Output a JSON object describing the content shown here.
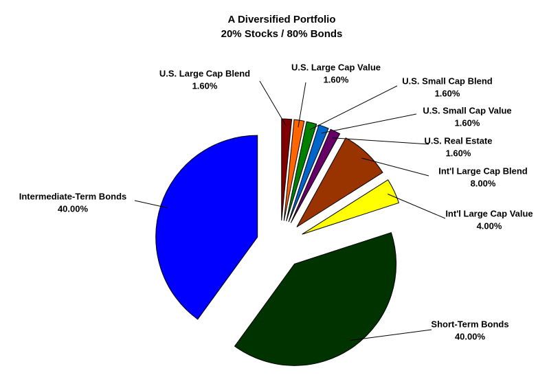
{
  "chart_data": {
    "type": "pie",
    "title": "A Diversified Portfolio",
    "subtitle": "20% Stocks / 80% Bonds",
    "categories": [
      "U.S. Large Cap Blend",
      "U.S. Large Cap Value",
      "U.S. Small Cap Blend",
      "U.S. Small Cap Value",
      "U.S. Real Estate",
      "Int'l Large Cap Blend",
      "Int'l Large Cap Value",
      "Short-Term Bonds",
      "Intermediate-Term Bonds"
    ],
    "values": [
      1.6,
      1.6,
      1.6,
      1.6,
      1.6,
      8,
      4,
      40,
      40
    ],
    "value_labels": [
      "1.60%",
      "1.60%",
      "1.60%",
      "1.60%",
      "1.60%",
      "8.00%",
      "4.00%",
      "40.00%",
      "40.00%"
    ],
    "colors": [
      "#800000",
      "#ff6600",
      "#008000",
      "#0066cc",
      "#660066",
      "#993300",
      "#ffff00",
      "#003300",
      "#0000ff"
    ]
  }
}
